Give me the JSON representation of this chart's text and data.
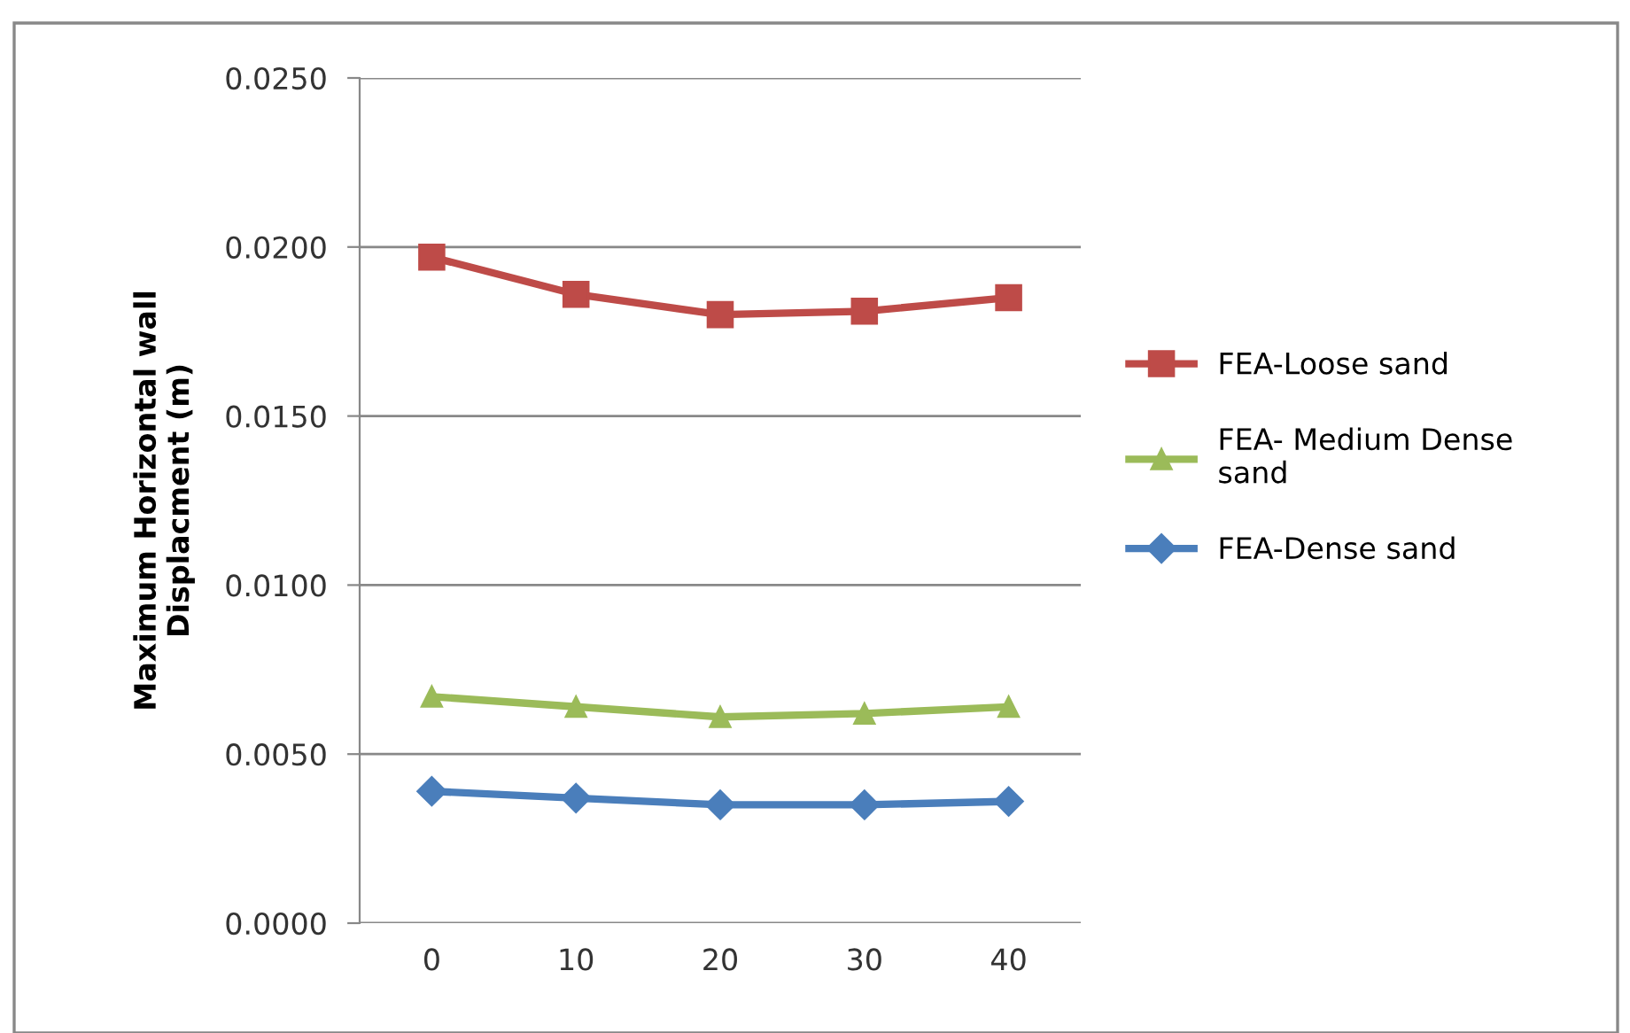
{
  "chart_data": {
    "type": "line",
    "ylabel": "Maximum Horizontal wall\nDisplacment (m)",
    "categories": [
      "0",
      "10",
      "20",
      "30",
      "40"
    ],
    "series": [
      {
        "name": "FEA-Loose sand",
        "color": "#be4b48",
        "marker": "square",
        "values": [
          0.0197,
          0.0186,
          0.018,
          0.0181,
          0.0185
        ]
      },
      {
        "name": "FEA- Medium Dense\nsand",
        "color": "#9bbb59",
        "marker": "triangle",
        "values": [
          0.0067,
          0.0064,
          0.0061,
          0.0062,
          0.0064
        ]
      },
      {
        "name": "FEA-Dense sand",
        "color": "#4a7ebb",
        "marker": "diamond",
        "values": [
          0.0039,
          0.0037,
          0.0035,
          0.0035,
          0.0036
        ]
      }
    ],
    "ylim": [
      0,
      0.025
    ],
    "yticks": [
      {
        "value": 0,
        "label": "0.0000"
      },
      {
        "value": 0.005,
        "label": "0.0050"
      },
      {
        "value": 0.01,
        "label": "0.0100"
      },
      {
        "value": 0.015,
        "label": "0.0150"
      },
      {
        "value": 0.02,
        "label": "0.0200"
      },
      {
        "value": 0.025,
        "label": "0.0250"
      }
    ],
    "grid": "y",
    "legend": "right",
    "line_style": "solid"
  }
}
